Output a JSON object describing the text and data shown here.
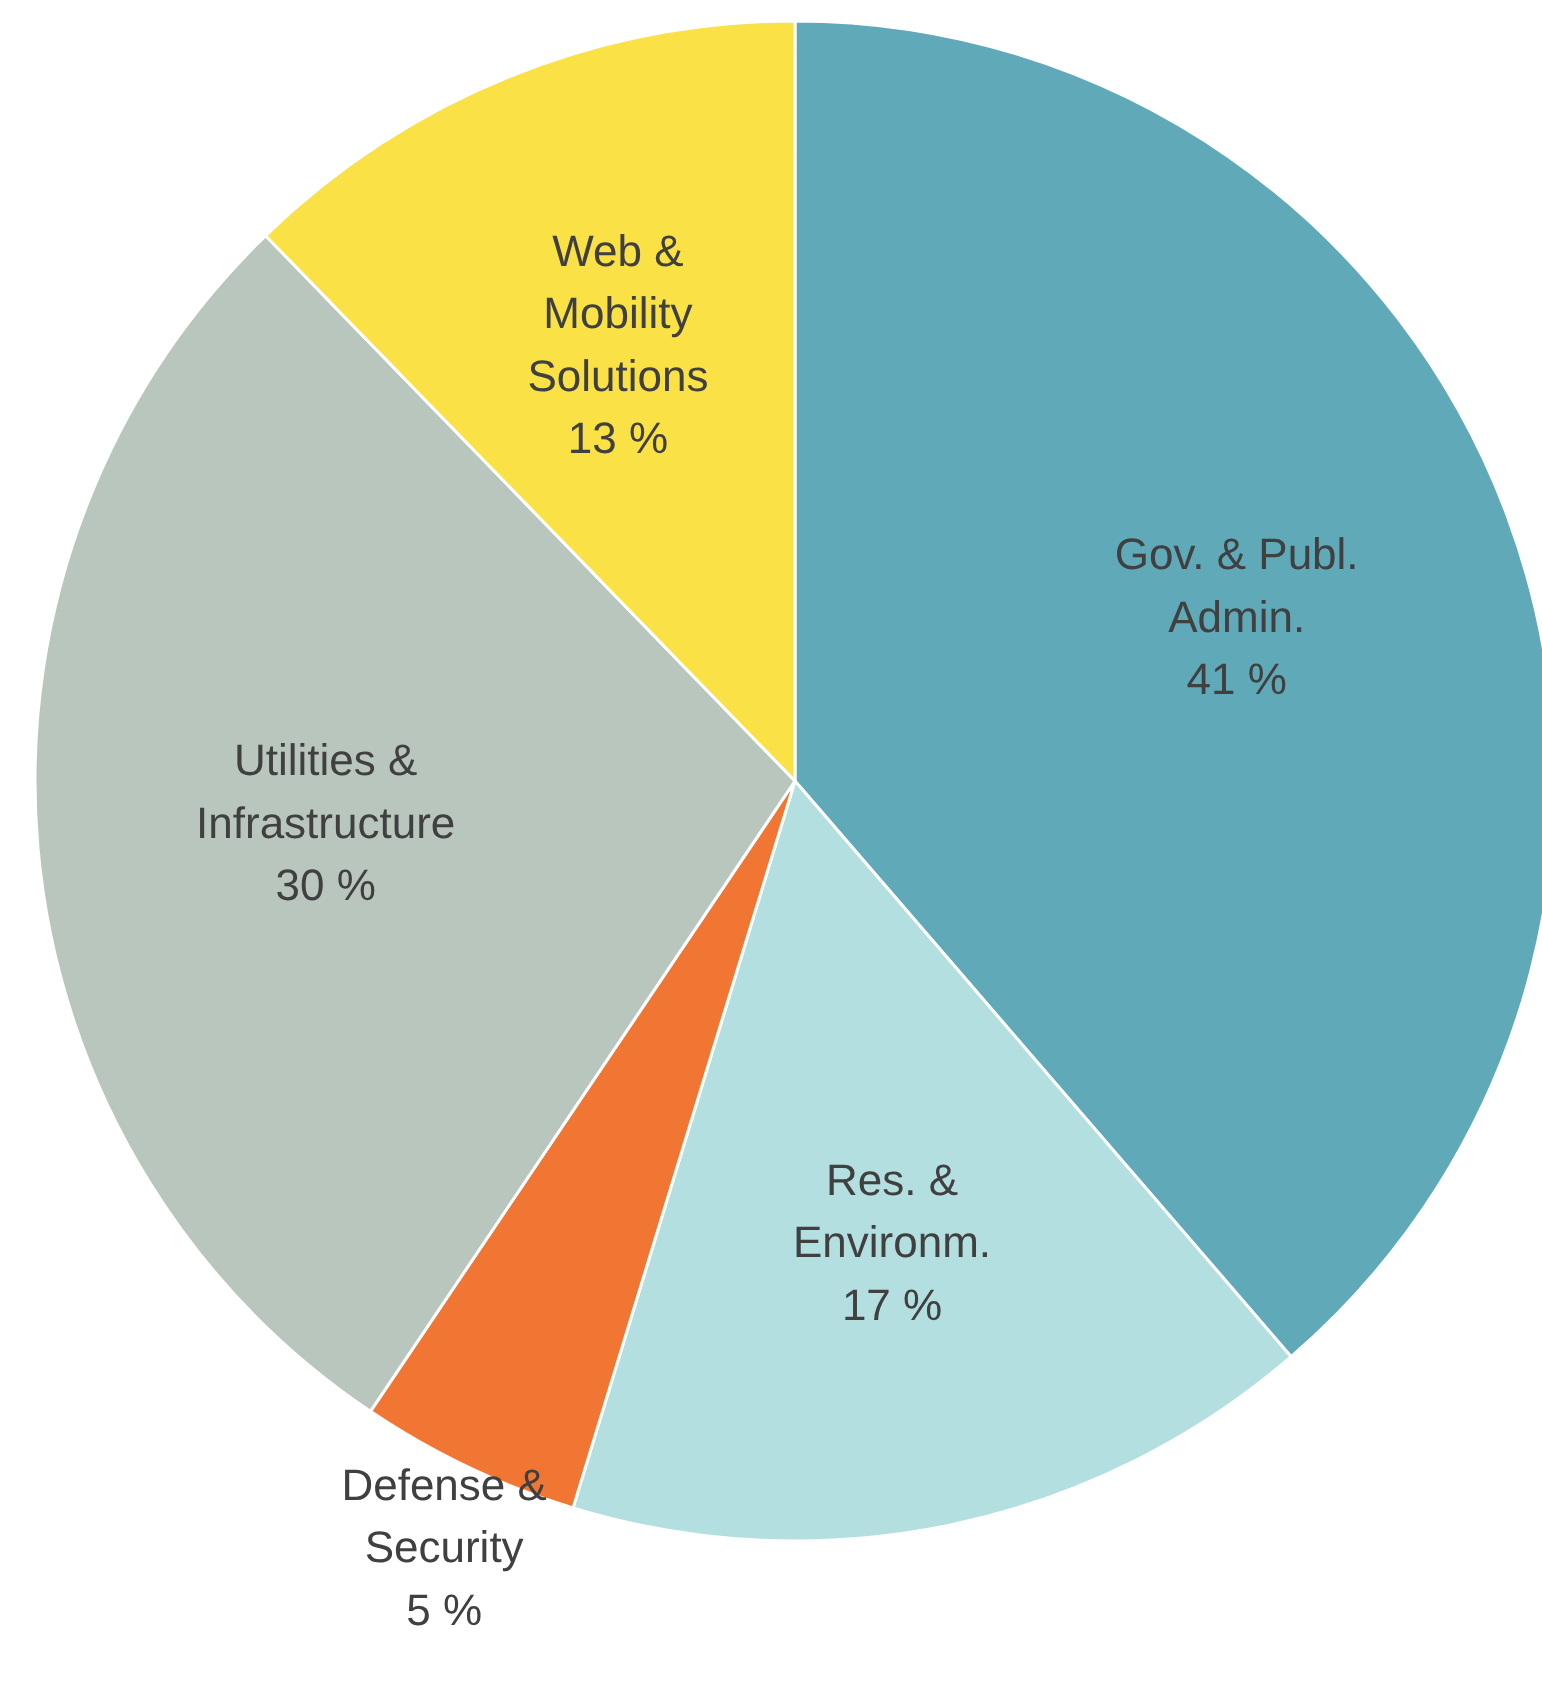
{
  "chart_data": {
    "type": "pie",
    "categories": [
      "Gov. & Publ. Admin.",
      "Res. & Environm.",
      "Defense & Security",
      "Utilities & Infrastructure",
      "Web & Mobility Solutions"
    ],
    "values": [
      41,
      17,
      5,
      30,
      13
    ],
    "value_labels": [
      "41 %",
      "17 %",
      "5 %",
      "30 %",
      "13 %"
    ],
    "colors": [
      "#5fa9b9",
      "#b3dfe0",
      "#f27633",
      "#b9c6bd",
      "#f9e146"
    ],
    "legend": false
  }
}
